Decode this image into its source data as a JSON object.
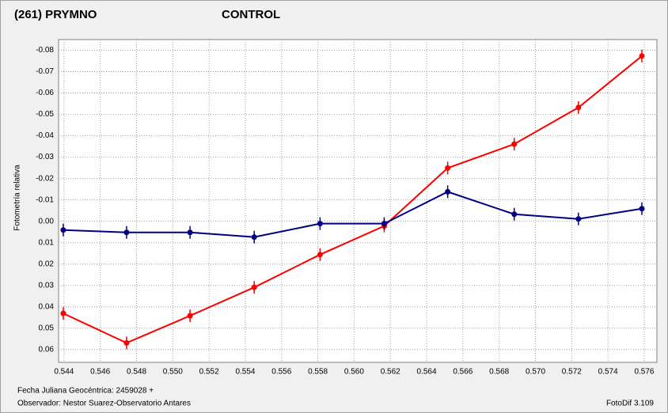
{
  "chart_data": {
    "type": "line",
    "y_label": "Fotometría relativa",
    "x_label": "Fecha Juliana Geocéntrica: 2459028 +",
    "observer": "Observador: Nestor Suarez-Observatorio Antares",
    "software": "FotoDif 3.109",
    "x": [
      0.54396,
      0.54745,
      0.55095,
      0.55449,
      0.55812,
      0.56166,
      0.56516,
      0.56883,
      0.57237,
      0.57587
    ],
    "series": [
      {
        "name": "(261) PRYMNO",
        "color": "#ff0000",
        "values": [
          0.0431,
          0.0569,
          0.0442,
          0.0309,
          0.0156,
          0.0022,
          -0.0249,
          -0.0361,
          -0.0532,
          -0.0773
        ]
      },
      {
        "name": "CONTROL",
        "color": "#000080",
        "values": [
          0.0041,
          0.0052,
          0.0052,
          0.0074,
          0.0011,
          0.0011,
          -0.0138,
          -0.0033,
          -0.0011,
          -0.0059
        ]
      }
    ],
    "xlim": [
      0.5437,
      0.5767
    ],
    "ylim": [
      0.066,
      -0.085
    ],
    "xticks": [
      0.544,
      0.546,
      0.548,
      {
        "value": 0.55,
        "label": "0.550"
      },
      0.552,
      0.554,
      0.556,
      0.558,
      {
        "value": 0.56,
        "label": "0.560"
      },
      0.562,
      0.564,
      0.566,
      0.568,
      {
        "value": 0.57,
        "label": "0.570"
      },
      0.572,
      0.574,
      0.576
    ],
    "yticks": [
      -0.08,
      -0.07,
      -0.06,
      -0.05,
      -0.04,
      -0.03,
      -0.02,
      -0.01,
      {
        "value": 0,
        "label": "0.00"
      },
      0.01,
      0.02,
      0.03,
      0.04,
      0.05,
      0.06
    ],
    "grid": true
  }
}
